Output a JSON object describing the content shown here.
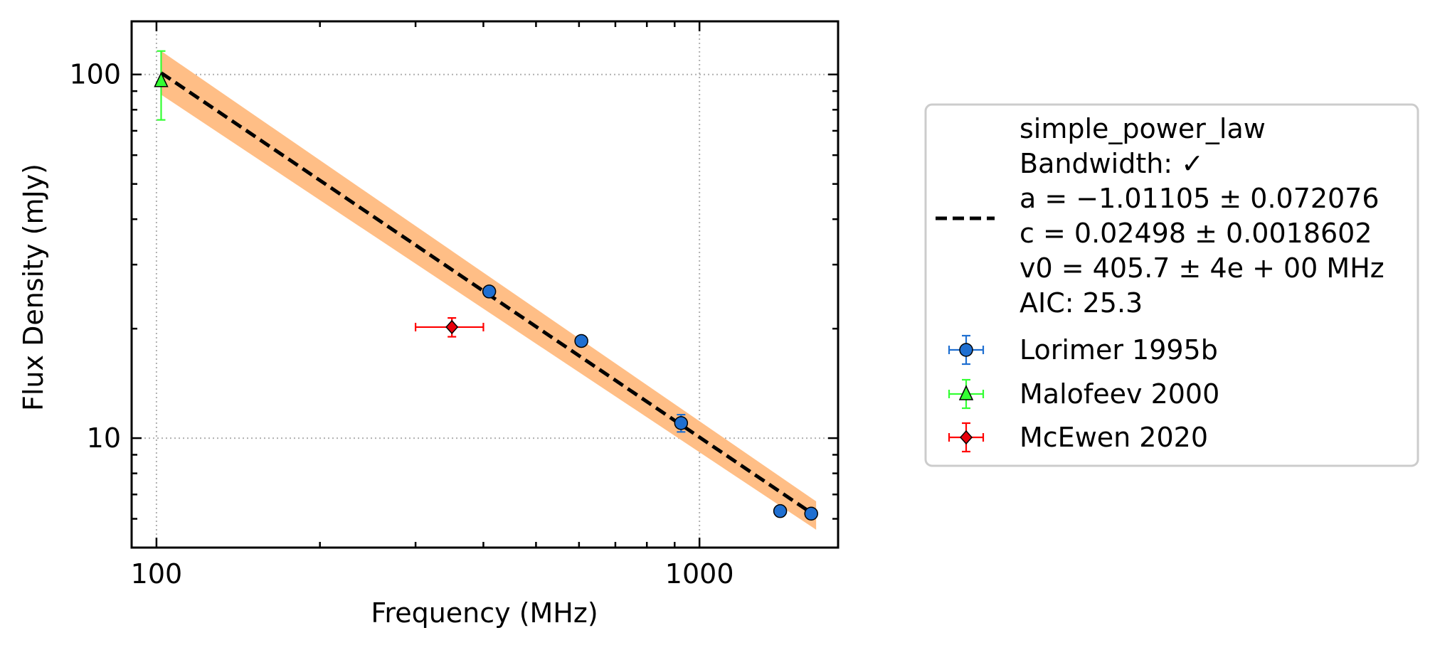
{
  "chart_data": {
    "type": "scatter",
    "title": "",
    "xlabel": "Frequency (MHz)",
    "ylabel": "Flux Density (mJy)",
    "x_scale": "log",
    "y_scale": "log",
    "xlim": [
      90,
      1800
    ],
    "ylim": [
      5,
      140
    ],
    "x_ticks": [
      100,
      1000
    ],
    "x_tick_labels": [
      "100",
      "1000"
    ],
    "y_ticks": [
      10,
      100
    ],
    "y_tick_labels": [
      "10",
      "100"
    ],
    "grid": true,
    "legend_position": "right, outside",
    "fit": {
      "name": "simple_power_law",
      "bandwidth": "Bandwidth: ✓",
      "a": "a = −1.01105 ± 0.072076",
      "c": "c = 0.02498 ± 0.0018602",
      "v0": "v0 = 405.7 ± 4e + 00 MHz",
      "aic": "AIC: 25.3",
      "line_color": "#000000",
      "band_color": "#ffbe86",
      "x": [
        102,
        1640
      ],
      "y": [
        101,
        6.1
      ],
      "band_upper": [
        116,
        6.7
      ],
      "band_lower": [
        88,
        5.6
      ]
    },
    "series": [
      {
        "name": "Lorimer 1995b",
        "marker": "circle",
        "color": "#1f6fd1",
        "errcolor": "#1f6fd1",
        "points": [
          {
            "x": 410,
            "y": 25.3,
            "yerr": 0.3
          },
          {
            "x": 606,
            "y": 18.5,
            "yerr": 0.3
          },
          {
            "x": 925,
            "y": 11.0,
            "yerr": 0.6
          },
          {
            "x": 1408,
            "y": 6.3,
            "yerr": 0.15
          },
          {
            "x": 1606,
            "y": 6.2,
            "yerr": 0.15
          }
        ]
      },
      {
        "name": "Malofeev 2000",
        "marker": "triangle",
        "color": "#33ff33",
        "errcolor": "#33ff33",
        "points": [
          {
            "x": 102,
            "y": 96,
            "yerr_low": 21,
            "yerr_high": 20
          }
        ]
      },
      {
        "name": "McEwen 2020",
        "marker": "diamond",
        "color": "#e8000b",
        "errcolor": "#ff0000",
        "points": [
          {
            "x": 350,
            "y": 20.2,
            "xerr_low": 50,
            "xerr_high": 50,
            "yerr": 1.2
          }
        ]
      }
    ]
  }
}
